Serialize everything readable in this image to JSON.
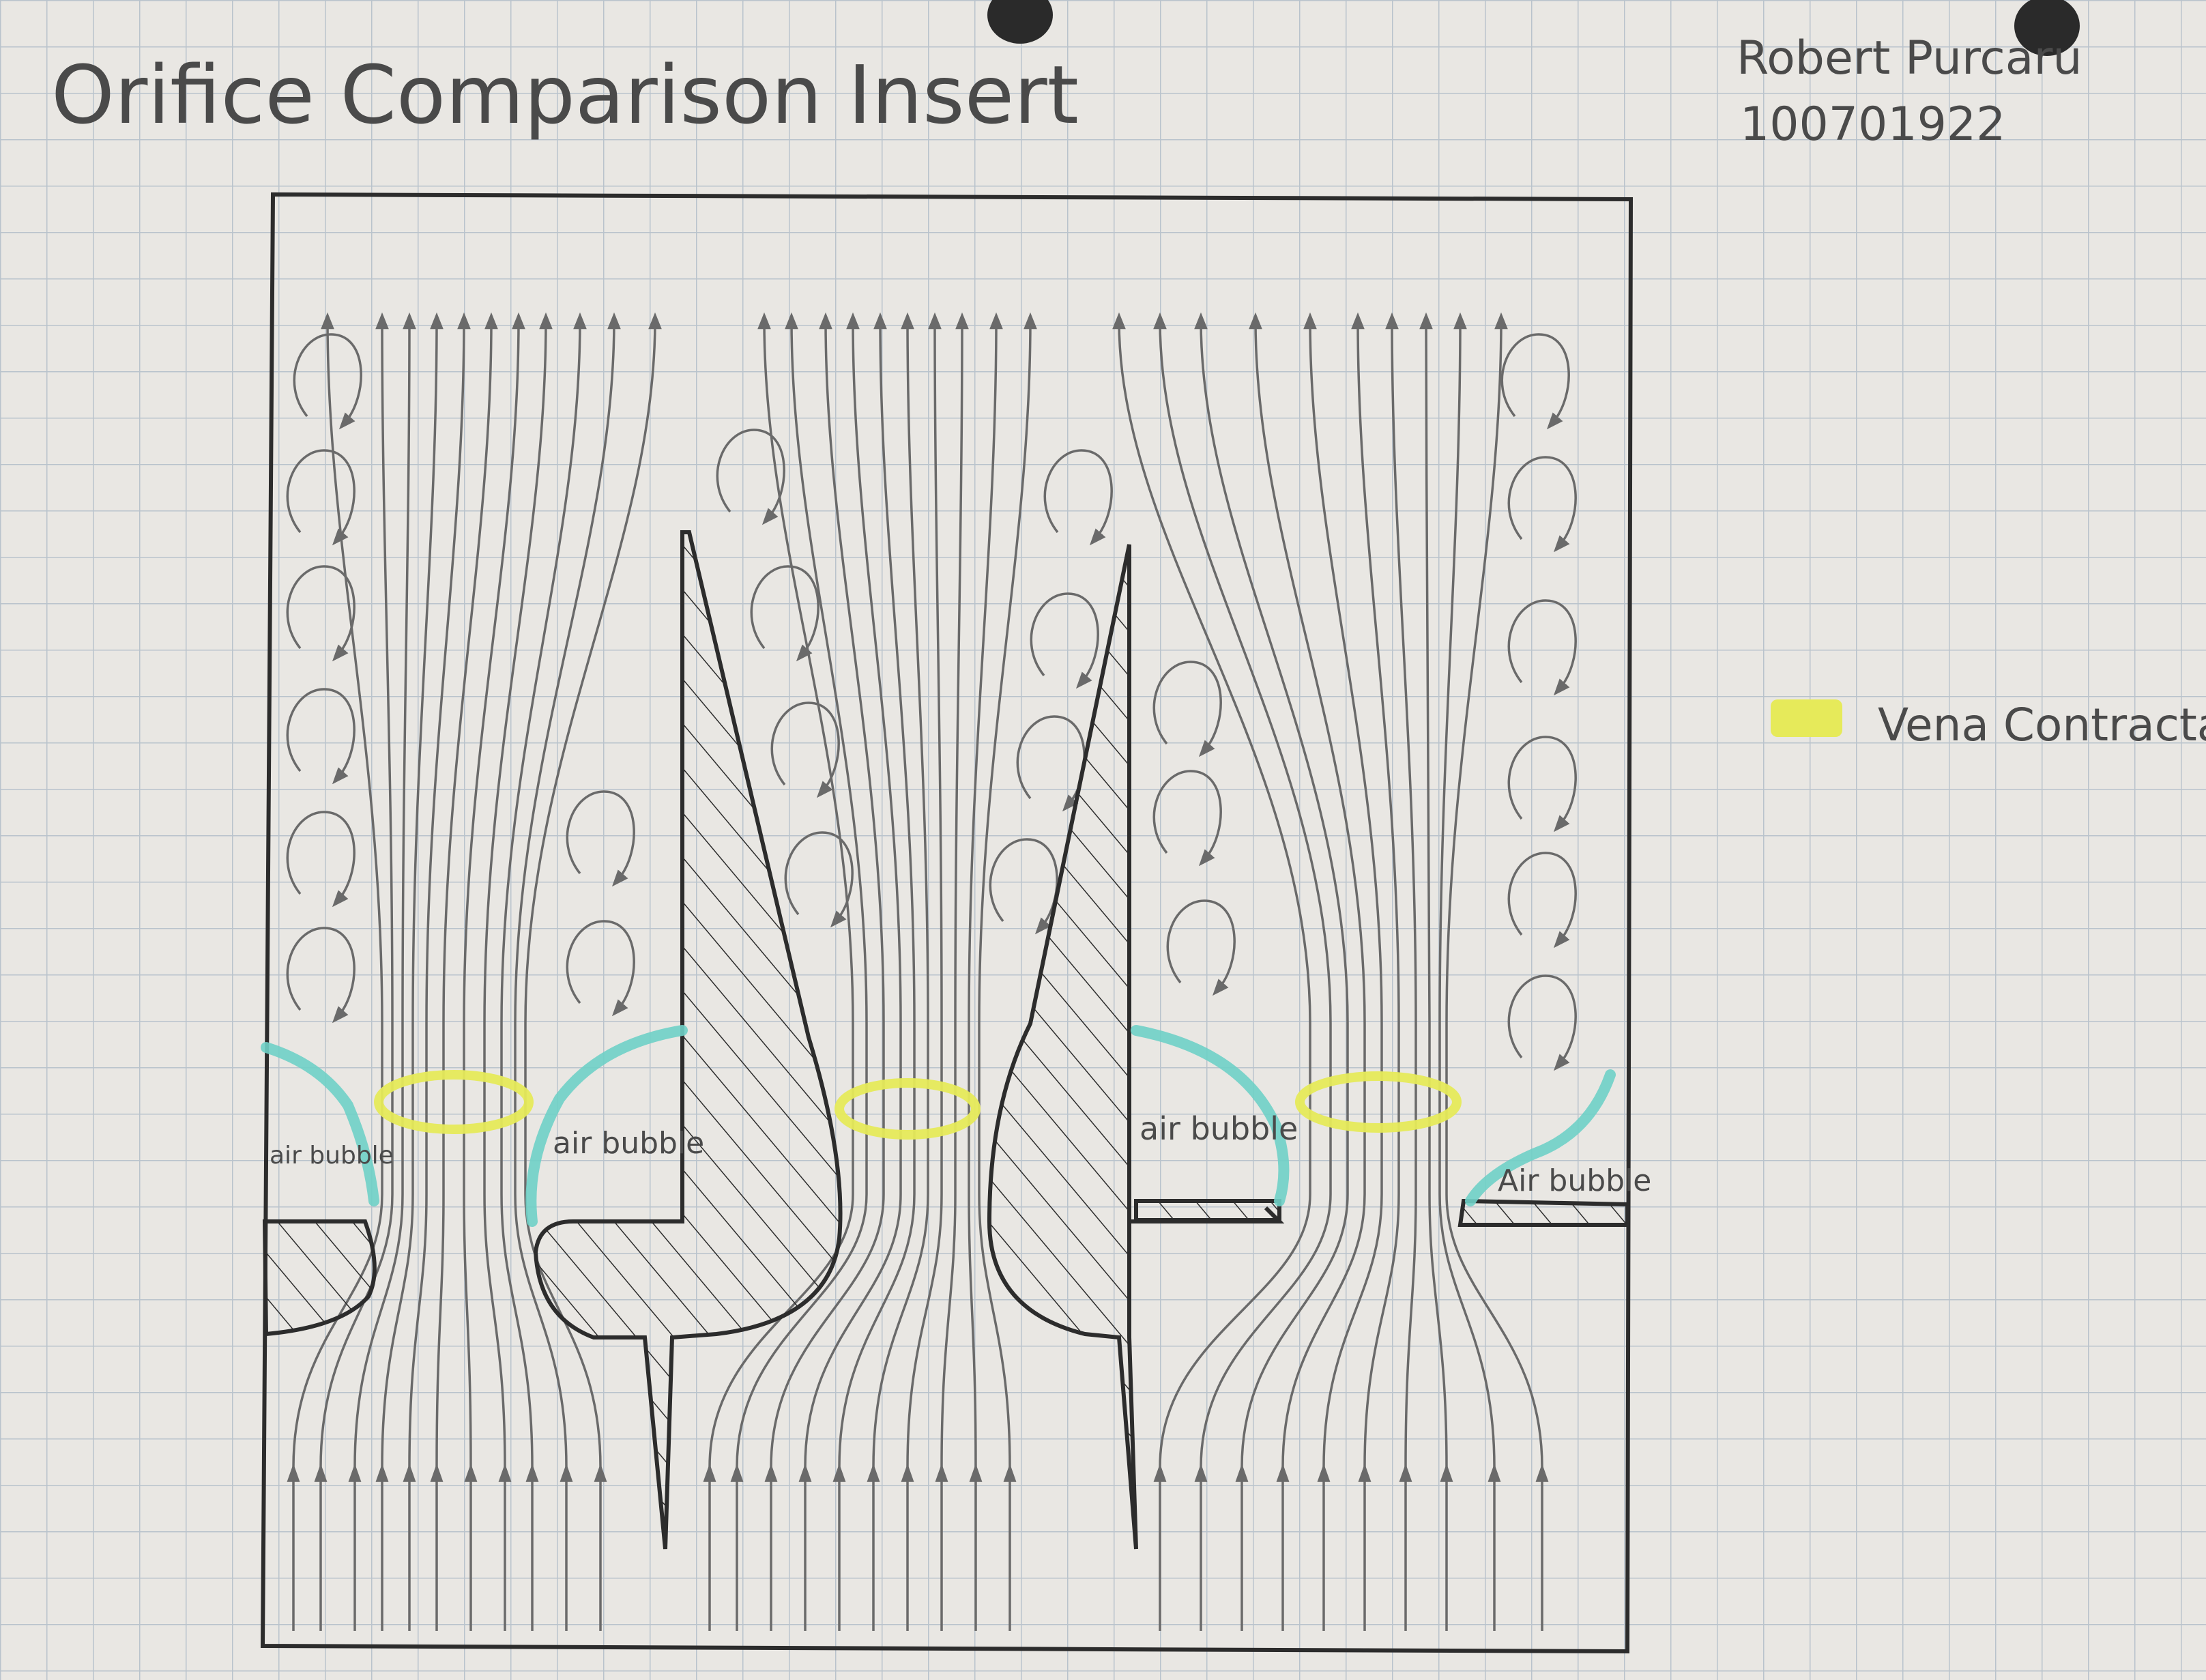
{
  "title": "Orifice Comparison Insert",
  "author": {
    "name": "Robert Purcaru",
    "student_number": "100701922"
  },
  "legend": {
    "swatch_color": "#e6ea5a",
    "label": "Vena Contracta"
  },
  "annotations": {
    "air_bubble_1": "air bubble",
    "air_bubble_2": "air bubble",
    "air_bubble_3": "air bubble",
    "air_bubble_4": "Air bubble"
  },
  "colors": {
    "paper": "#e9e7e3",
    "grid": "#b9c3cc",
    "ink": "#2c2c2c",
    "pencil": "#6a6a6a",
    "air_bubble": "#6fd0c6",
    "vena_contracta": "#e6ea5a"
  },
  "icons": {
    "paper_hole": "punch-hole-icon",
    "flow_arrow": "arrowhead-icon",
    "recirculation": "eddy-arrow-icon"
  }
}
